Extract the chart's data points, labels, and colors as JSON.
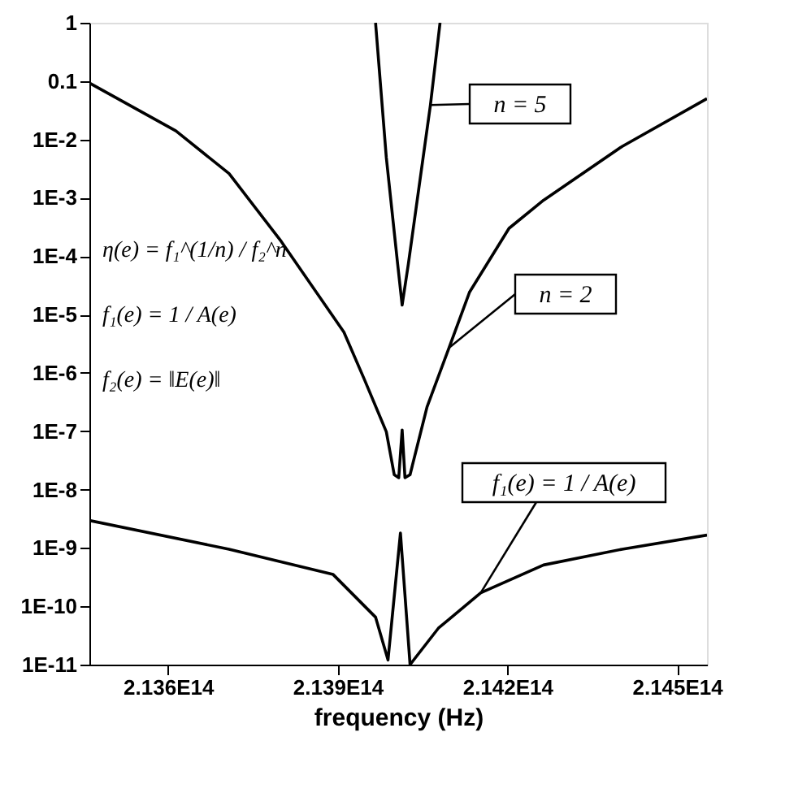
{
  "chart_data": {
    "type": "line",
    "xlabel": "frequency (Hz)",
    "xlim": [
      213461000000000.0,
      214553000000000.0
    ],
    "xticks": [
      {
        "value": 213600000000000.0,
        "label": "2.136E14"
      },
      {
        "value": 213900000000000.0,
        "label": "2.139E14"
      },
      {
        "value": 214200000000000.0,
        "label": "2.142E14"
      },
      {
        "value": 214500000000000.0,
        "label": "2.145E14"
      }
    ],
    "ylim": [
      1e-11,
      1
    ],
    "log": true,
    "yticks": [
      1,
      0.1,
      {
        "value": 0.01,
        "label": "1E-2"
      },
      {
        "value": 0.001,
        "label": "1E-3"
      },
      {
        "value": 0.0001,
        "label": "1E-4"
      },
      {
        "value": 1e-05,
        "label": "1E-5"
      },
      {
        "value": 1e-06,
        "label": "1E-6"
      },
      {
        "value": 1e-07,
        "label": "1E-7"
      },
      {
        "value": 1e-08,
        "label": "1E-8"
      },
      {
        "value": 1e-09,
        "label": "1E-9"
      },
      {
        "value": 1e-10,
        "label": "1E-10"
      },
      {
        "value": 1e-11,
        "label": "1E-11"
      }
    ],
    "grid": false,
    "marker": "none",
    "line_style": "solid",
    "series": [
      {
        "color": "#000000",
        "x": [
          213967000000000.0,
          213986000000000.0,
          214006000000000.0,
          214014000000000.0,
          214025000000000.0,
          214064000000000.0,
          214081000000000.0
        ],
        "values": [
          1,
          0.0049,
          7.4e-05,
          1.45e-05,
          7.4e-05,
          0.039,
          1
        ]
      },
      {
        "color": "#000000",
        "x": [
          213461000000000.0,
          213614000000000.0,
          213708000000000.0,
          213800000000000.0,
          213911000000000.0,
          213947000000000.0,
          213986000000000.0,
          214000000000000.0,
          214008000000000.0,
          214014000000000.0,
          214019000000000.0,
          214028000000000.0,
          214058000000000.0,
          214097000000000.0,
          214133000000000.0,
          214203000000000.0,
          214264000000000.0,
          214403000000000.0,
          214553000000000.0
        ],
        "values": [
          0.093,
          0.014,
          0.0026,
          0.00018,
          5e-06,
          7.8e-07,
          9.8e-08,
          1.8e-08,
          1.6e-08,
          1.05e-07,
          1.6e-08,
          1.8e-08,
          2.6e-07,
          2.7e-06,
          2.4e-05,
          0.0003,
          0.00091,
          0.0076,
          0.05
        ]
      },
      {
        "color": "#000000",
        "x": [
          213461000000000.0,
          213708000000000.0,
          213892000000000.0,
          213967000000000.0,
          213989000000000.0,
          214011000000000.0,
          214028000000000.0,
          214078000000000.0,
          214153000000000.0,
          214264000000000.0,
          214403000000000.0,
          214553000000000.0
        ],
        "values": [
          2.95e-09,
          9.5e-10,
          3.5e-10,
          6.5e-11,
          1.2e-11,
          1.8e-09,
          1e-11,
          4.2e-11,
          1.7e-10,
          5.1e-10,
          9.5e-10,
          1.66e-09
        ]
      }
    ],
    "annotations": [
      {
        "text": "n = 5",
        "x": 214064000000000.0,
        "y": 0.039
      },
      {
        "text": "n = 2",
        "x": 214097000000000.0,
        "y": 2.7e-06
      },
      {
        "text": "f₁(e) = 1 / A(e)",
        "x": 214153000000000.0,
        "y": 1.7e-10
      },
      "η(e) = f₁^(1/n) / f₂^n",
      "f₁(e) = 1 / A(e)",
      "f₂(e) = ‖E(e)‖"
    ]
  }
}
